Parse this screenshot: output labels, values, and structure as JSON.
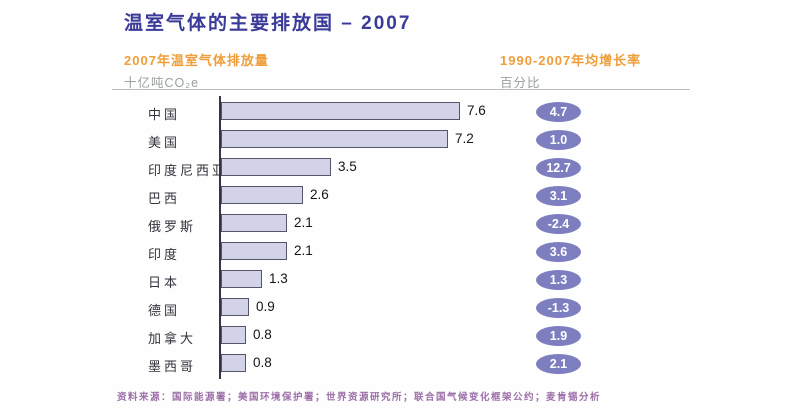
{
  "header": {
    "title": "温室气体的主要排放国 – 2007"
  },
  "columns": {
    "emissions": {
      "title": "2007年温室气体排放量",
      "unit": "十亿吨CO₂e"
    },
    "growth": {
      "title": "1990-2007年均增长率",
      "unit": "百分比"
    }
  },
  "chart_data": {
    "type": "bar",
    "orientation": "horizontal",
    "title": "温室气体的主要排放国 – 2007",
    "categories": [
      "中国",
      "美国",
      "印度尼西亚",
      "巴西",
      "俄罗斯",
      "印度",
      "日本",
      "德国",
      "加拿大",
      "墨西哥"
    ],
    "series": [
      {
        "name": "2007年温室气体排放量",
        "unit": "十亿吨CO₂e",
        "values": [
          7.6,
          7.2,
          3.5,
          2.6,
          2.1,
          2.1,
          1.3,
          0.9,
          0.8,
          0.8
        ]
      },
      {
        "name": "1990-2007年均增长率",
        "unit": "百分比",
        "values": [
          4.7,
          1.0,
          12.7,
          3.1,
          -2.4,
          3.6,
          1.3,
          -1.3,
          1.9,
          2.1
        ]
      }
    ],
    "xlabel": "",
    "ylabel": "",
    "xlim": [
      0,
      7.9
    ],
    "grid": false,
    "legend_position": "none",
    "value_labels": true
  },
  "footer": {
    "source": "资料来源：国际能源署；美国环境保护署；世界资源研究所；联合国气候变化框架公约；麦肯锡分析"
  },
  "colors": {
    "title_indigo": "#3a3a99",
    "header_orange": "#ef9e3a",
    "unit_gray": "#9aa0a0",
    "bar_fill": "#d2d3e9",
    "bar_border": "#55556a",
    "axis_line": "#33334a",
    "growth_badge": "#7d7ec0",
    "badge_text": "#ffffff",
    "source_purple": "#9c6fa8"
  }
}
